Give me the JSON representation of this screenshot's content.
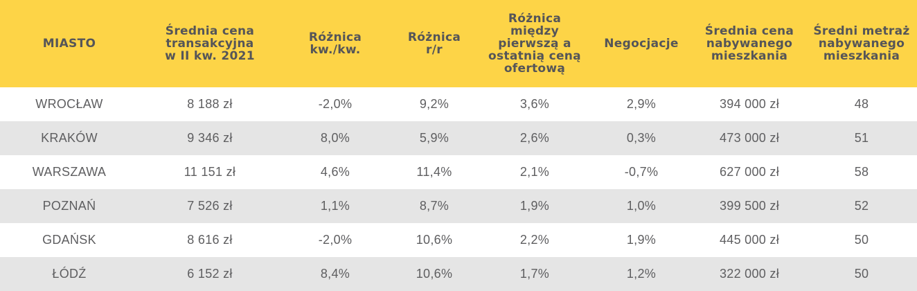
{
  "table": {
    "headers": [
      "MIASTO",
      "Średnia cena\ntransakcyjna\nw II kw. 2021",
      "Różnica\nkw./kw.",
      "Różnica\nr/r",
      "Różnica\nmiędzy\npierwszą a\nostatnią ceną\nofertową",
      "Negocjacje",
      "Średnia cena\nnabywanego\nmieszkania",
      "Średni metraż\nnabywanego\nmieszkania"
    ],
    "rows": [
      [
        "WROCŁAW",
        "8 188 zł",
        "-2,0%",
        "9,2%",
        "3,6%",
        "2,9%",
        "394 000 zł",
        "48"
      ],
      [
        "KRAKÓW",
        "9 346 zł",
        "8,0%",
        "5,9%",
        "2,6%",
        "0,3%",
        "473 000 zł",
        "51"
      ],
      [
        "WARSZAWA",
        "11 151 zł",
        "4,6%",
        "11,4%",
        "2,1%",
        "-0,7%",
        "627 000 zł",
        "58"
      ],
      [
        "POZNAŃ",
        "7 526 zł",
        "1,1%",
        "8,7%",
        "1,9%",
        "1,0%",
        "399 500 zł",
        "52"
      ],
      [
        "GDAŃSK",
        "8 616 zł",
        "-2,0%",
        "10,6%",
        "2,2%",
        "1,9%",
        "445 000 zł",
        "50"
      ],
      [
        "ŁÓDŹ",
        "6 152 zł",
        "8,4%",
        "10,6%",
        "1,7%",
        "1,2%",
        "322 000 zł",
        "50"
      ]
    ]
  },
  "colors": {
    "header_bg": "#fdd447",
    "row_alt_bg": "#e5e5e5",
    "text": "#5e5e60"
  }
}
